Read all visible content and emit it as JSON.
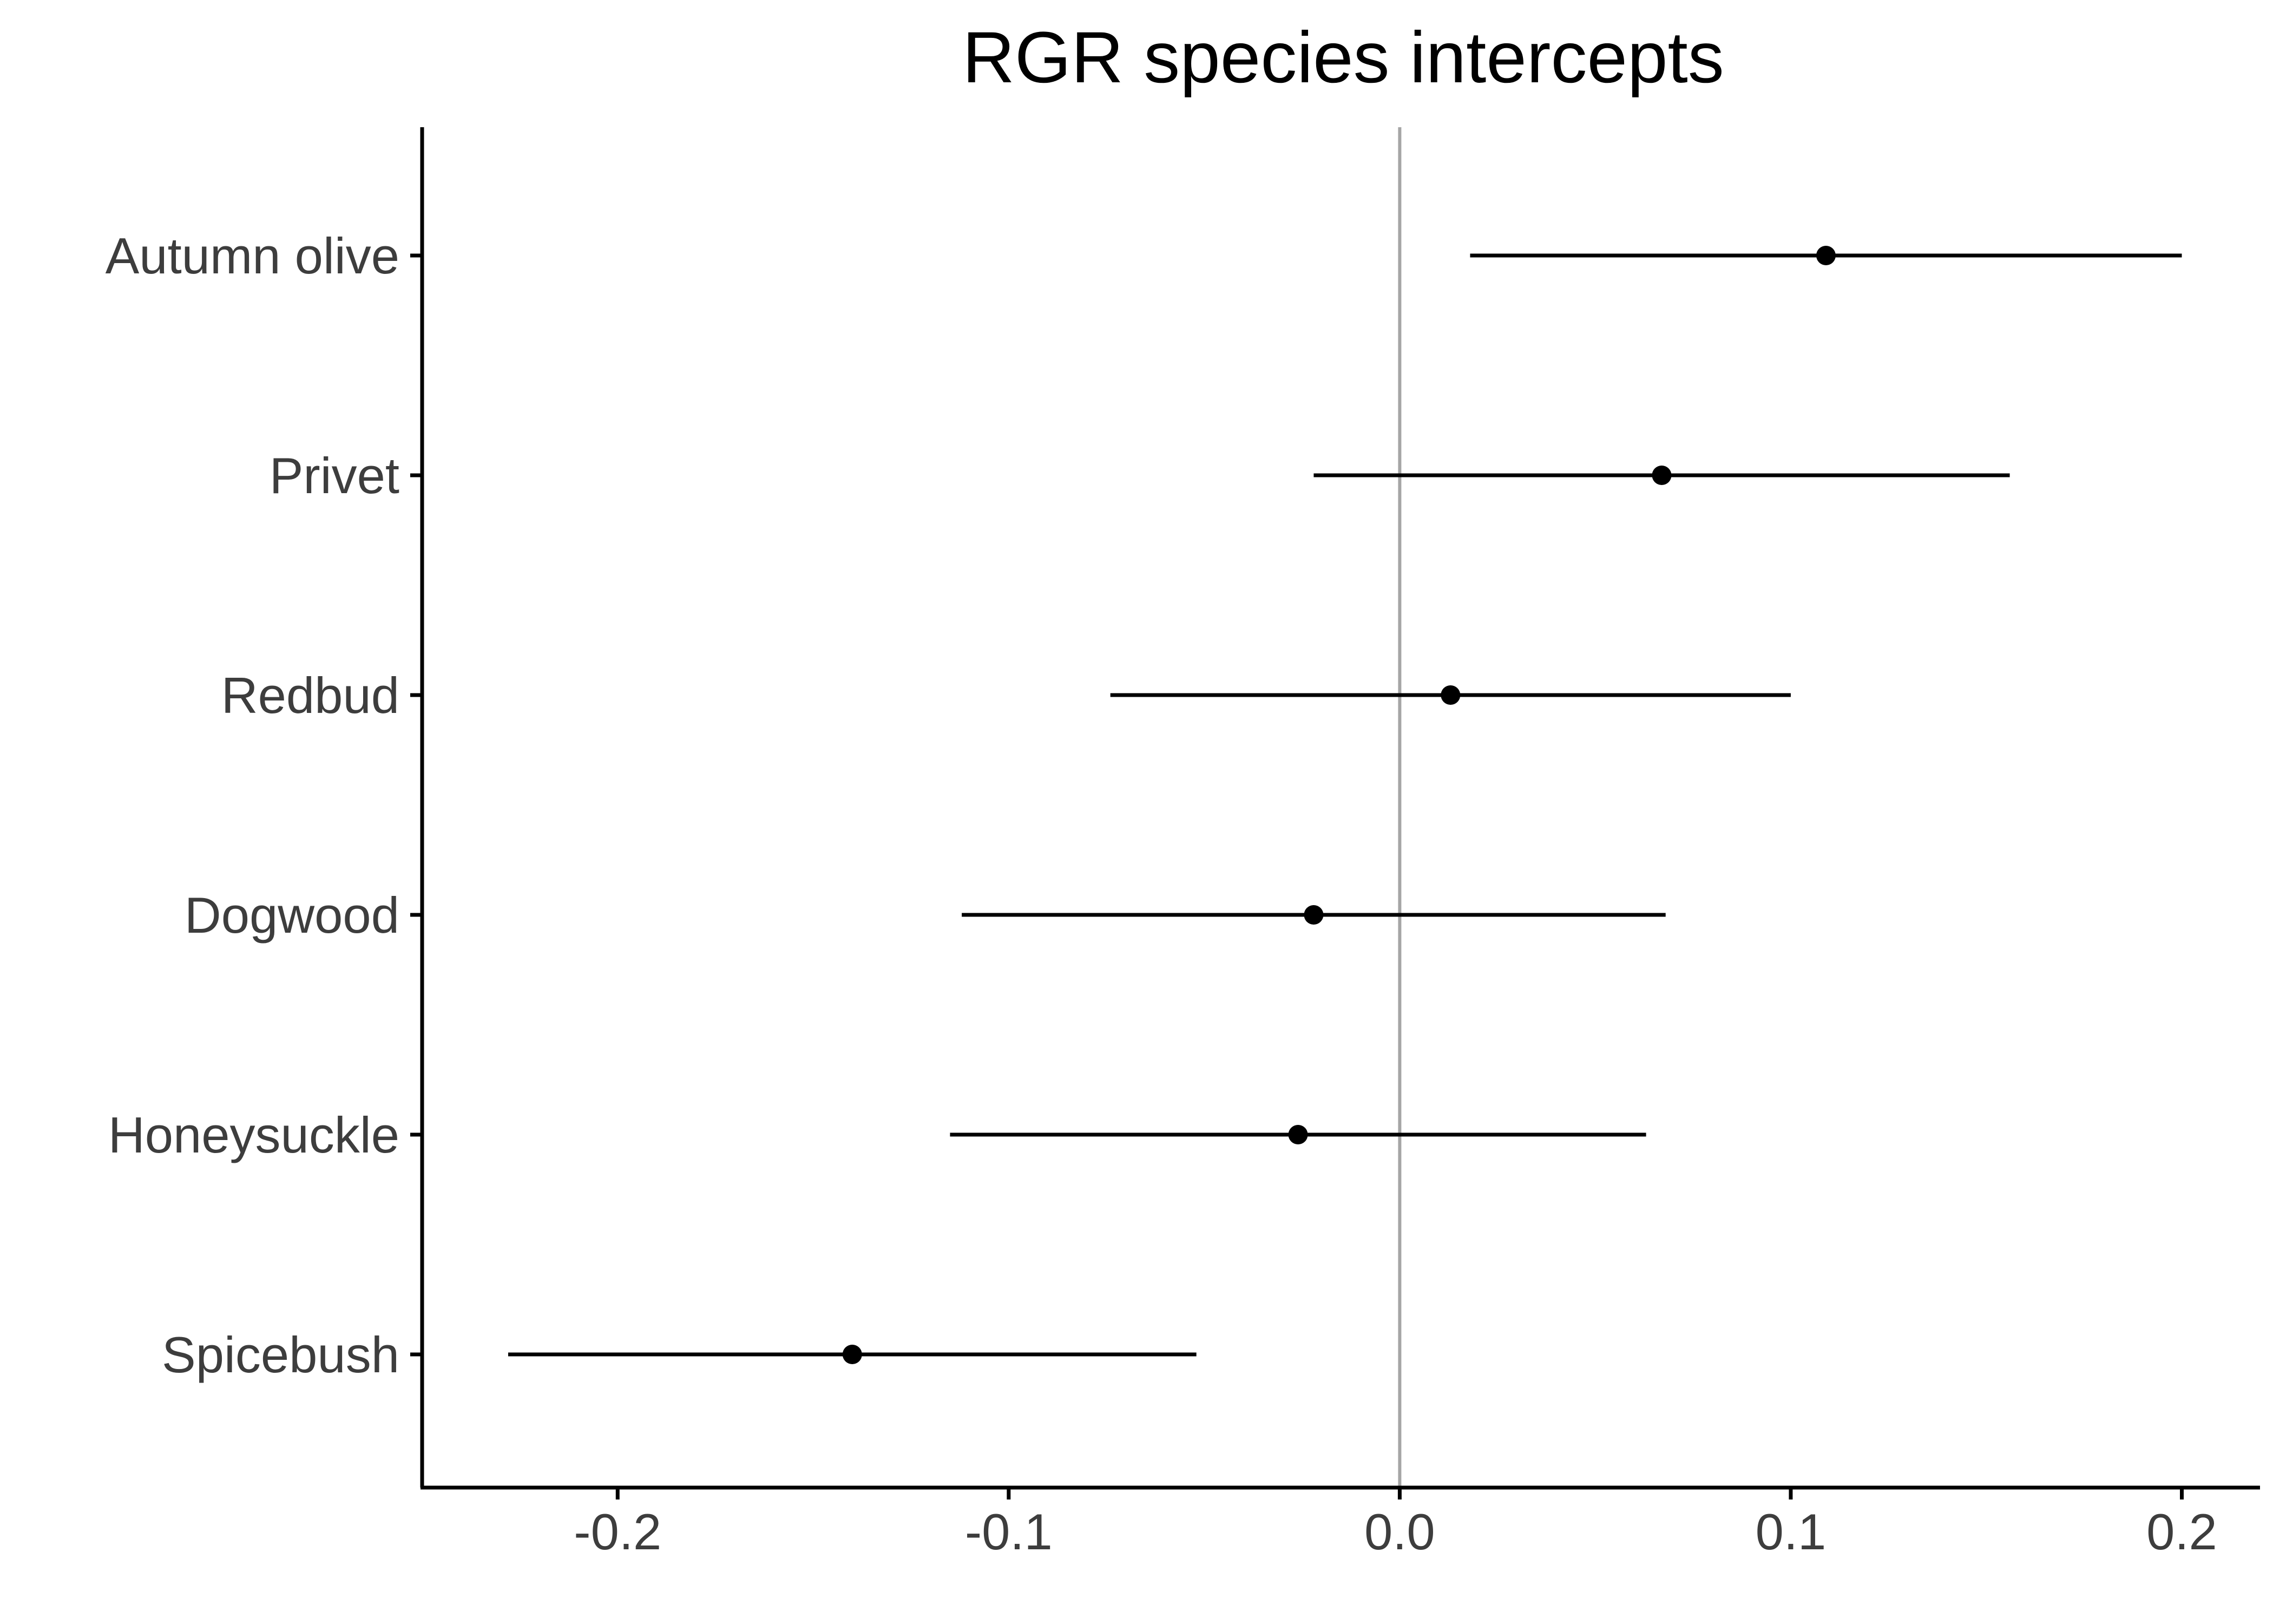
{
  "chart_data": {
    "type": "scatter",
    "title": "RGR species intercepts",
    "xlabel": "",
    "ylabel": "",
    "xlim": [
      -0.25,
      0.22
    ],
    "x_ticks": [
      "-0.2",
      "-0.1",
      "0.0",
      "0.1",
      "0.2"
    ],
    "reference_line_x": 0.0,
    "grid": false,
    "legend": "none",
    "categories": [
      "Autumn olive",
      "Privet",
      "Redbud",
      "Dogwood",
      "Honeysuckle",
      "Spicebush"
    ],
    "estimates": [
      0.109,
      0.067,
      0.013,
      -0.022,
      -0.026,
      -0.14
    ],
    "lower": [
      0.018,
      -0.022,
      -0.074,
      -0.112,
      -0.115,
      -0.228
    ],
    "upper": [
      0.2,
      0.156,
      0.1,
      0.068,
      0.063,
      -0.052
    ]
  },
  "colors": {
    "points": "#000000",
    "intervals": "#000000",
    "axes": "#000000",
    "reference_line": "#a6a6a6",
    "tick_labels": "#3d3d3d"
  }
}
